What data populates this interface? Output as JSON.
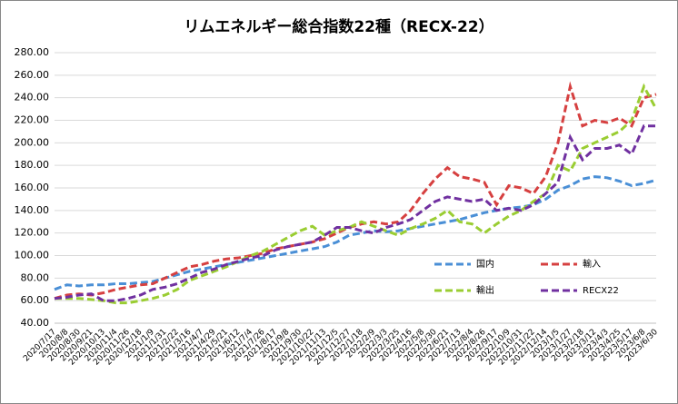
{
  "chart_data": {
    "type": "line",
    "title": "リムエネルギー総合指数22種（RECX-22）",
    "categories": [
      "2020/7/17",
      "2020/8/8",
      "2020/8/30",
      "2020/9/21",
      "2020/10/13",
      "2020/11/4",
      "2020/11/26",
      "2020/12/18",
      "2021/1/9",
      "2021/1/31",
      "2021/2/22",
      "2021/3/16",
      "2021/4/7",
      "2021/4/29",
      "2021/5/21",
      "2021/6/12",
      "2021/7/4",
      "2021/7/26",
      "2021/8/17",
      "2021/9/8",
      "2021/9/30",
      "2021/10/22",
      "2021/11/13",
      "2021/12/5",
      "2021/12/27",
      "2022/1/18",
      "2022/2/9",
      "2022/3/3",
      "2022/3/25",
      "2022/4/16",
      "2022/5/8",
      "2022/5/30",
      "2022/6/21",
      "2022/7/13",
      "2022/8/4",
      "2022/8/26",
      "2022/9/17",
      "2022/10/9",
      "2022/10/31",
      "2022/11/22",
      "2022/12/14",
      "2023/1/5",
      "2023/1/27",
      "2023/2/18",
      "2023/3/12",
      "2023/4/3",
      "2023/4/25",
      "2023/5/17",
      "2023/6/8",
      "2023/6/30"
    ],
    "series": [
      {
        "name": "国内",
        "color": "#4a8fd6",
        "values": [
          70,
          74,
          73,
          74,
          74,
          75,
          75,
          76,
          77,
          80,
          83,
          86,
          88,
          90,
          92,
          94,
          96,
          98,
          100,
          102,
          104,
          106,
          108,
          112,
          118,
          120,
          122,
          121,
          122,
          124,
          126,
          128,
          130,
          132,
          135,
          138,
          140,
          142,
          143,
          145,
          150,
          158,
          162,
          168,
          170,
          169,
          166,
          162,
          164,
          167
        ]
      },
      {
        "name": "輸入",
        "color": "#d64040",
        "values": [
          62,
          65,
          66,
          65,
          67,
          70,
          72,
          74,
          75,
          80,
          85,
          90,
          92,
          95,
          97,
          98,
          100,
          102,
          106,
          108,
          110,
          112,
          115,
          120,
          125,
          128,
          130,
          128,
          130,
          140,
          155,
          168,
          178,
          170,
          168,
          165,
          145,
          162,
          160,
          155,
          170,
          200,
          250,
          215,
          220,
          218,
          222,
          215,
          240,
          243
        ]
      },
      {
        "name": "輸出",
        "color": "#9acd32",
        "values": [
          62,
          62,
          62,
          61,
          60,
          58,
          58,
          60,
          62,
          65,
          70,
          78,
          82,
          86,
          90,
          95,
          100,
          104,
          110,
          116,
          122,
          126,
          118,
          122,
          125,
          130,
          126,
          122,
          118,
          124,
          128,
          133,
          140,
          130,
          128,
          120,
          128,
          135,
          140,
          148,
          155,
          180,
          175,
          195,
          200,
          205,
          210,
          220,
          250,
          230
        ]
      },
      {
        "name": "RECX22",
        "color": "#7030a0",
        "values": [
          62,
          63,
          65,
          66,
          60,
          60,
          62,
          65,
          70,
          72,
          75,
          80,
          85,
          88,
          92,
          95,
          98,
          100,
          105,
          108,
          110,
          112,
          118,
          125,
          125,
          122,
          120,
          125,
          128,
          132,
          140,
          148,
          152,
          150,
          148,
          150,
          140,
          142,
          140,
          145,
          155,
          165,
          205,
          185,
          195,
          195,
          198,
          190,
          215,
          215
        ]
      }
    ],
    "ylim": [
      40,
      280
    ],
    "yticks": [
      {
        "value": 40,
        "label": "40.00"
      },
      {
        "value": 60,
        "label": "60.00"
      },
      {
        "value": 80,
        "label": "80.00"
      },
      {
        "value": 100,
        "label": "100.00"
      },
      {
        "value": 120,
        "label": "120.00"
      },
      {
        "value": 140,
        "label": "140.00"
      },
      {
        "value": 160,
        "label": "160.00"
      },
      {
        "value": 180,
        "label": "180.00"
      },
      {
        "value": 200,
        "label": "200.00"
      },
      {
        "value": 220,
        "label": "220.00"
      },
      {
        "value": 240,
        "label": "240.00"
      },
      {
        "value": 260,
        "label": "260.00"
      },
      {
        "value": 280,
        "label": "280.00"
      }
    ],
    "grid": true,
    "legend": "lower right"
  }
}
